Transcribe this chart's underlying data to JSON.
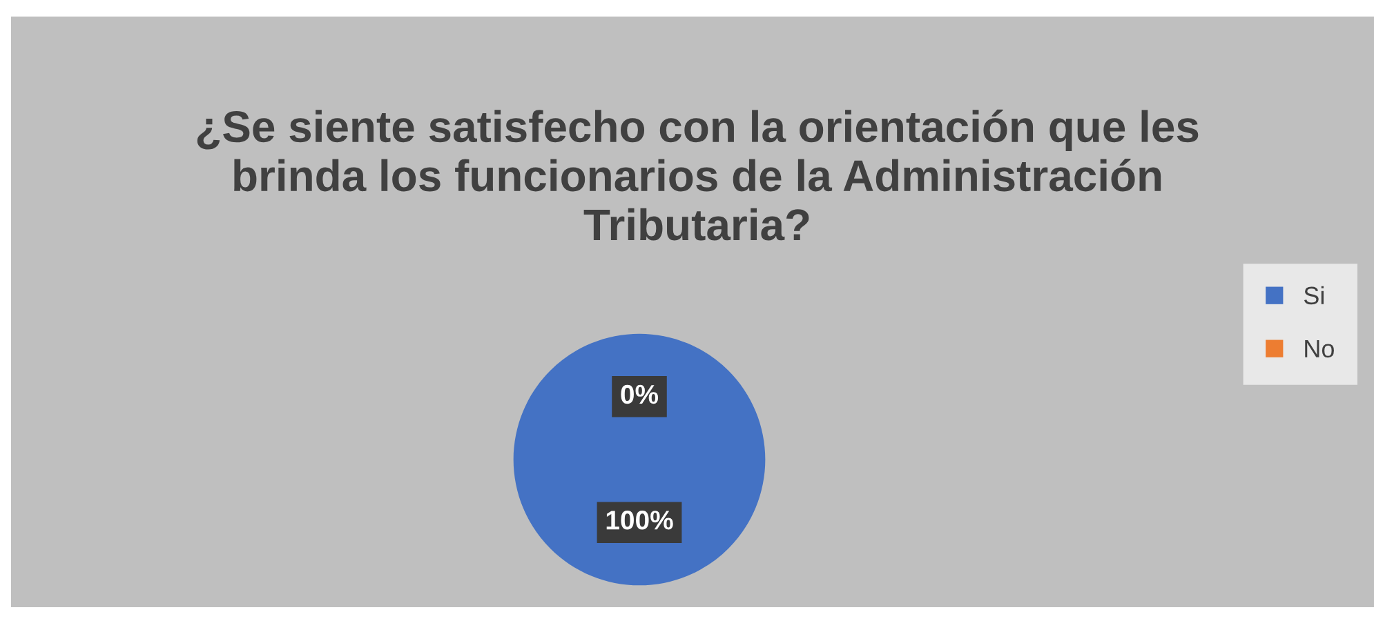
{
  "chart_data": {
    "type": "pie",
    "title": "¿Se siente satisfecho con la orientación que les brinda los funcionarios de la Administración Tributaria?",
    "categories": [
      "Si",
      "No"
    ],
    "values": [
      100,
      0
    ],
    "colors": [
      "#4472c4",
      "#ed7d31"
    ],
    "value_labels": [
      "100%",
      "0%"
    ],
    "legend": "right"
  }
}
